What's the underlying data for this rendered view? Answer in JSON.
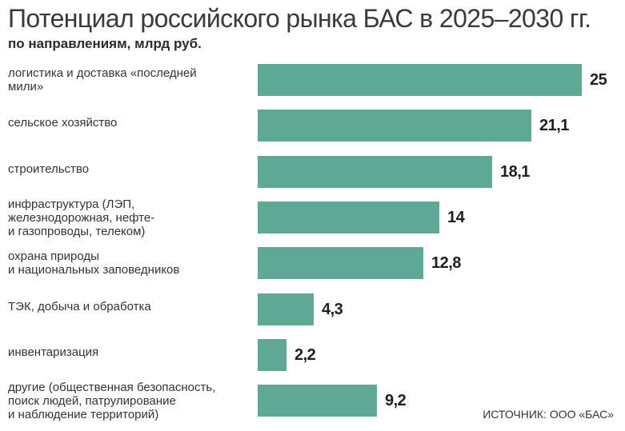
{
  "header": {
    "title": "Потенциал российского рынка БАС в 2025–2030 гг.",
    "subtitle": "по направлениям, млрд руб."
  },
  "source": "ИСТОЧНИК: ООО «БАС»",
  "colors": {
    "bar": "#5fa896"
  },
  "chart_data": {
    "type": "bar",
    "orientation": "horizontal",
    "title": "Потенциал российского рынка БАС в 2025–2030 гг.",
    "subtitle": "по направлениям, млрд руб.",
    "xlabel": "",
    "ylabel": "",
    "xlim": [
      0,
      25
    ],
    "grid": false,
    "legend": "none",
    "categories": [
      [
        "логистика и доставка «последней",
        "мили»"
      ],
      [
        "сельское хозяйство"
      ],
      [
        "строительство"
      ],
      [
        "инфраструктура (ЛЭП,",
        "железнодорожная, нефте-",
        "и газопроводы, телеком)"
      ],
      [
        "охрана природы",
        "и национальных заповедников"
      ],
      [
        "ТЭК, добыча и обработка"
      ],
      [
        "инвентаризация"
      ],
      [
        "другие (общественная безопасность,",
        "поиск людей, патрулирование",
        "и наблюдение территорий)"
      ]
    ],
    "values": [
      25,
      21.1,
      18.1,
      14,
      12.8,
      4.3,
      2.2,
      9.2
    ],
    "value_labels": [
      "25",
      "21,1",
      "18,1",
      "14",
      "12,8",
      "4,3",
      "2,2",
      "9,2"
    ]
  }
}
